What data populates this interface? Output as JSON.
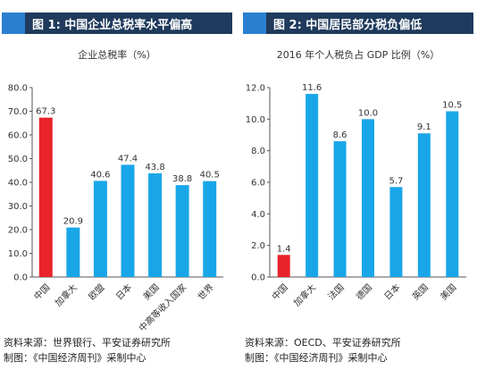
{
  "panels": [
    {
      "title": "图 1: 中国企业总税率水平偏高",
      "source_line1": "资料来源：世界银行、平安证券研究所",
      "source_line2": "制图：《中国经济周刊》采制中心"
    },
    {
      "title": "图 2: 中国居民部分税负偏低",
      "source_line1": "资料来源：OECD、平安证券研究所",
      "source_line2": "制图：《中国经济周刊》采制中心"
    }
  ],
  "colors": {
    "title_bg": "#1f3a5c",
    "title_accent": "#2a7fd0",
    "bar": "#19a6e8",
    "highlight": "#e8232a"
  },
  "chart_data": [
    {
      "type": "bar",
      "title": "企业总税率（%）",
      "categories": [
        "中国",
        "加拿大",
        "欧盟",
        "日本",
        "美国",
        "中高等收入国家",
        "世界"
      ],
      "values": [
        67.3,
        20.9,
        40.6,
        47.4,
        43.8,
        38.8,
        40.5
      ],
      "value_labels": [
        "67.3",
        "20.9",
        "40.6",
        "47.4",
        "43.8",
        "38.8",
        "40.5"
      ],
      "ylim": [
        0,
        80
      ],
      "yticks": [
        "0.0",
        "10.0",
        "20.0",
        "30.0",
        "40.0",
        "50.0",
        "60.0",
        "70.0",
        "80.0"
      ],
      "highlight_index": 0,
      "grid": false
    },
    {
      "type": "bar",
      "title": "2016 年个人税负占 GDP 比例（%）",
      "categories": [
        "中国",
        "加拿大",
        "法国",
        "德国",
        "日本",
        "英国",
        "美国"
      ],
      "values": [
        1.4,
        11.6,
        8.6,
        10.0,
        5.7,
        9.1,
        10.5
      ],
      "value_labels": [
        "1.4",
        "11.6",
        "8.6",
        "10.0",
        "5.7",
        "9.1",
        "10.5"
      ],
      "ylim": [
        0,
        12
      ],
      "yticks": [
        "0.0",
        "2.0",
        "4.0",
        "6.0",
        "8.0",
        "10.0",
        "12.0"
      ],
      "highlight_index": 0,
      "grid": false
    }
  ]
}
